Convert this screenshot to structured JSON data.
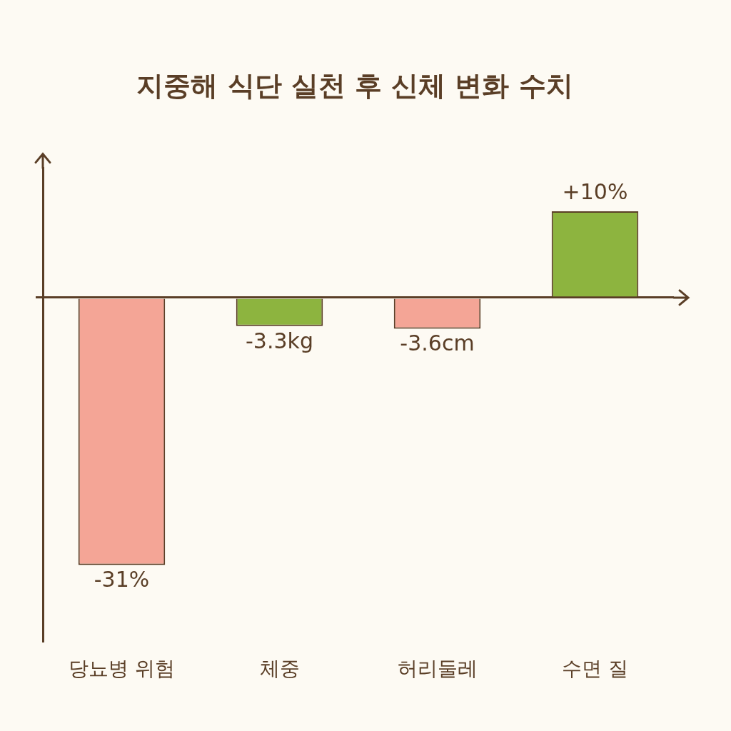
{
  "chart_data": {
    "type": "bar",
    "title": "지중해 식단 실천 후 신체 변화 수치",
    "categories": [
      "당뇨병 위험",
      "체중",
      "허리둘레",
      "수면 질"
    ],
    "values": [
      -31,
      -3.3,
      -3.6,
      10
    ],
    "value_labels": [
      "-31%",
      "-3.3kg",
      "-3.6cm",
      "+10%"
    ],
    "colors": [
      "#f4a596",
      "#8db43f",
      "#f4a596",
      "#8db43f"
    ],
    "ylim": [
      -40,
      15
    ],
    "yticks": [
      -40,
      -30,
      -20,
      -10,
      0,
      10
    ],
    "grid": false,
    "data_labels": true,
    "tick_labels": "x"
  }
}
